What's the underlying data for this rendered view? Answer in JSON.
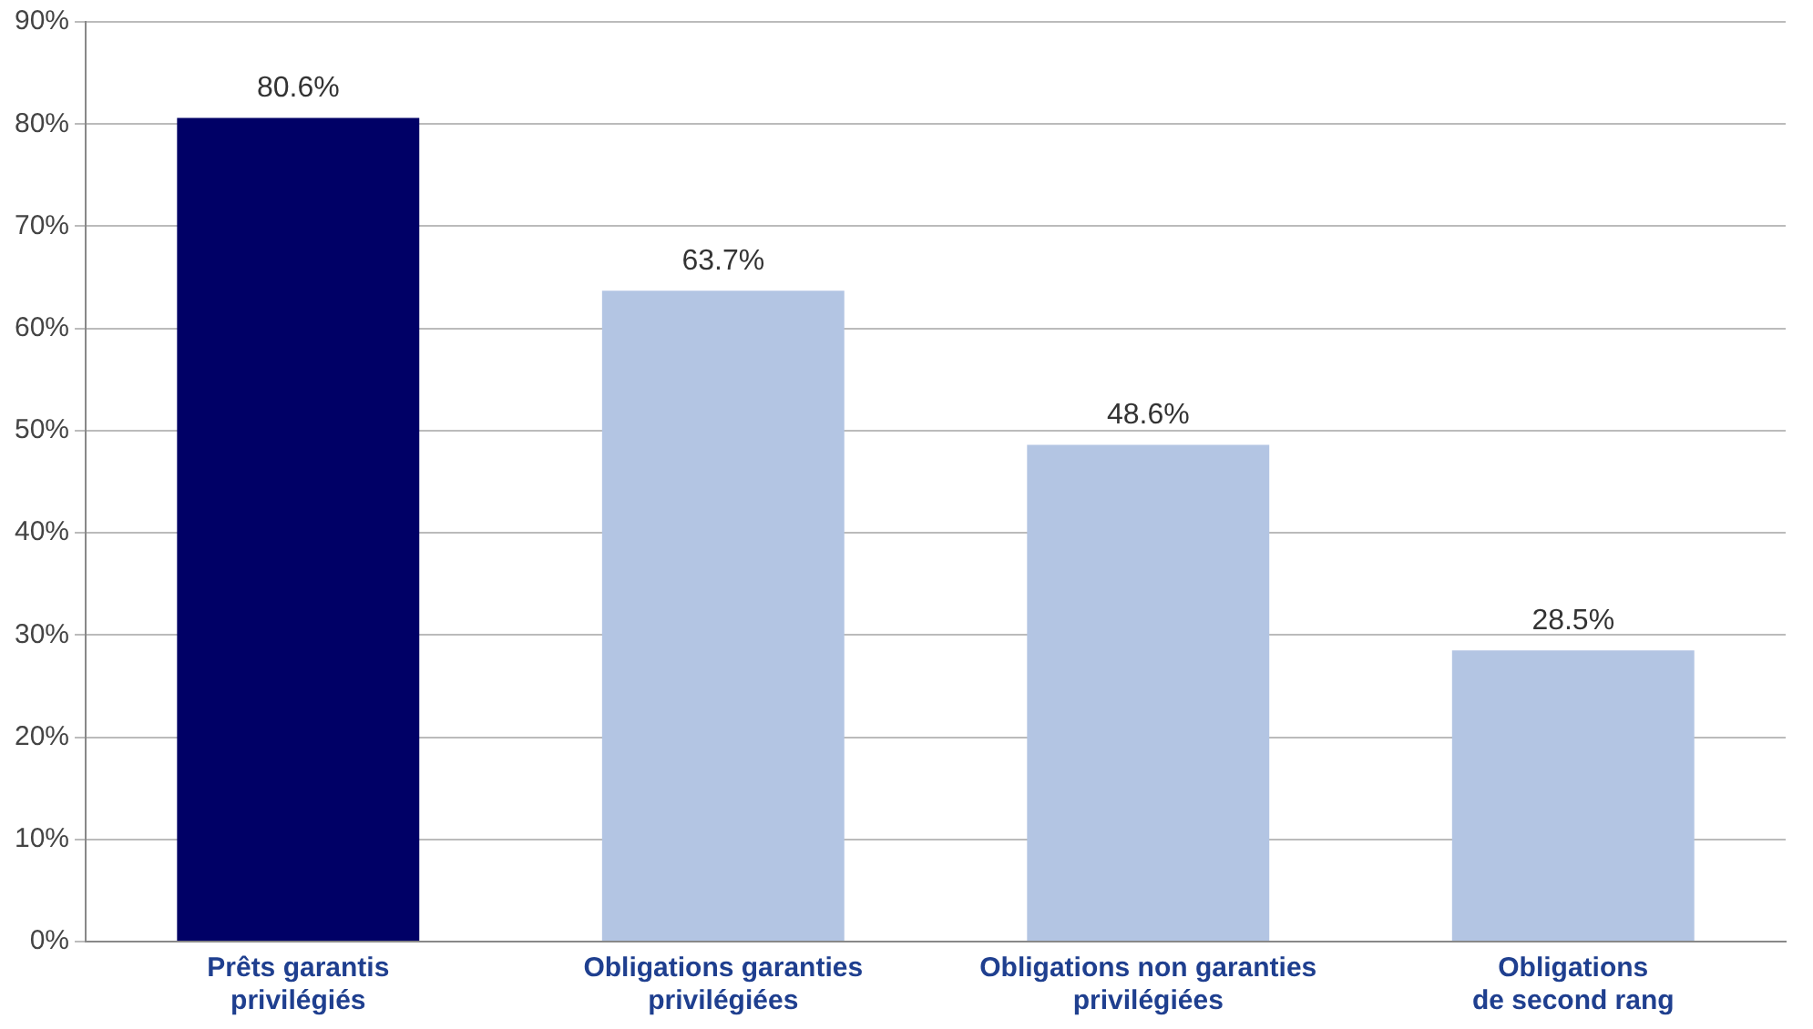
{
  "chart_data": {
    "type": "bar",
    "categories": [
      "Prêts garantis\nprivilégiés",
      "Obligations garanties\nprivilégiées",
      "Obligations non garanties\nprivilégiées",
      "Obligations\nde second rang"
    ],
    "values": [
      80.6,
      63.7,
      48.6,
      28.5
    ],
    "colors": [
      "#000066",
      "#b3c5e3",
      "#b3c5e3",
      "#b3c5e3"
    ],
    "value_labels": [
      "80.6%",
      "63.7%",
      "48.6%",
      "28.5%"
    ],
    "ylim": [
      0,
      90
    ],
    "yticks": [
      {
        "value": 0,
        "label": "0%"
      },
      {
        "value": 10,
        "label": "10%"
      },
      {
        "value": 20,
        "label": "20%"
      },
      {
        "value": 30,
        "label": "30%"
      },
      {
        "value": 40,
        "label": "40%"
      },
      {
        "value": 50,
        "label": "50%"
      },
      {
        "value": 60,
        "label": "60%"
      },
      {
        "value": 70,
        "label": "70%"
      },
      {
        "value": 80,
        "label": "80%"
      },
      {
        "value": 90,
        "label": "90%"
      }
    ],
    "grid": "y",
    "legend": false
  }
}
